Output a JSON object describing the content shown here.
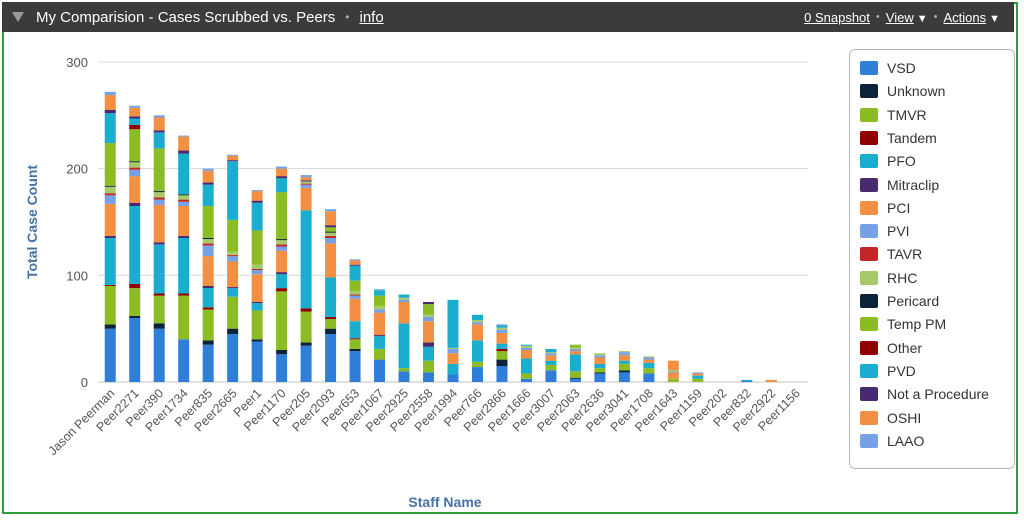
{
  "header": {
    "title": "My Comparision - Cases Scrubbed vs. Peers",
    "info_label": "info",
    "snapshot_label": "0 Snapshot",
    "view_label": "View",
    "actions_label": "Actions",
    "caret": "▼"
  },
  "chart_data": {
    "type": "bar",
    "stacked": true,
    "xlabel": "Staff Name",
    "ylabel": "Total Case Count",
    "ylim": [
      0,
      300
    ],
    "yticks": [
      0,
      100,
      200,
      300
    ],
    "grid": true,
    "legend_position": "right",
    "categories": [
      "Jason Peerman",
      "Peer2271",
      "Peer390",
      "Peer1734",
      "Peer835",
      "Peer2665",
      "Peer1",
      "Peer1170",
      "Peer205",
      "Peer2093",
      "Peer653",
      "Peer1067",
      "Peer2925",
      "Peer2558",
      "Peer1994",
      "Peer766",
      "Peer2866",
      "Peer1666",
      "Peer3007",
      "Peer2063",
      "Peer2636",
      "Peer3041",
      "Peer1708",
      "Peer1643",
      "Peer1159",
      "Peer202",
      "Peer832",
      "Peer2922",
      "Peer1156"
    ],
    "series": [
      {
        "name": "VSD",
        "color": "#2f7ed8",
        "values": [
          50,
          60,
          50,
          40,
          35,
          45,
          38,
          26,
          34,
          45,
          29,
          21,
          10,
          9,
          7,
          14,
          15,
          3,
          11,
          3,
          8,
          9,
          8,
          0,
          0,
          0,
          1,
          0,
          0
        ]
      },
      {
        "name": "Unknown",
        "color": "#0d233a",
        "values": [
          4,
          2,
          5,
          0,
          4,
          5,
          2,
          4,
          3,
          5,
          2,
          0,
          0,
          0,
          0,
          0,
          6,
          0,
          0,
          1,
          1,
          2,
          0,
          0,
          0,
          0,
          0,
          0,
          0
        ]
      },
      {
        "name": "TMVR",
        "color": "#8bbc21",
        "values": [
          36,
          26,
          26,
          41,
          29,
          30,
          27,
          55,
          29,
          9,
          9,
          10,
          3,
          11,
          0,
          5,
          8,
          5,
          5,
          6,
          4,
          6,
          5,
          3,
          3,
          0,
          0,
          0,
          0
        ]
      },
      {
        "name": "Tandem",
        "color": "#910000",
        "values": [
          1,
          4,
          2,
          2,
          2,
          0,
          0,
          3,
          3,
          2,
          1,
          0,
          0,
          0,
          0,
          0,
          2,
          0,
          0,
          0,
          0,
          0,
          0,
          0,
          0,
          0,
          0,
          0,
          0
        ]
      },
      {
        "name": "PFO",
        "color": "#1aadce",
        "values": [
          44,
          73,
          46,
          52,
          18,
          8,
          7,
          13,
          92,
          37,
          16,
          12,
          42,
          13,
          10,
          20,
          5,
          14,
          4,
          16,
          4,
          3,
          5,
          0,
          3,
          0,
          1,
          0,
          0
        ]
      },
      {
        "name": "Mitraclip",
        "color": "#492970",
        "values": [
          2,
          3,
          2,
          2,
          2,
          1,
          1,
          2,
          0,
          0,
          0,
          1,
          0,
          4,
          0,
          0,
          0,
          0,
          0,
          0,
          0,
          0,
          0,
          0,
          0,
          0,
          0,
          0,
          0
        ]
      },
      {
        "name": "PCI",
        "color": "#f28f43",
        "values": [
          30,
          25,
          35,
          28,
          28,
          24,
          26,
          20,
          21,
          32,
          21,
          21,
          20,
          20,
          10,
          15,
          10,
          8,
          5,
          3,
          6,
          5,
          3,
          6,
          2,
          0,
          0,
          2,
          0
        ]
      },
      {
        "name": "PVI",
        "color": "#77a1e5",
        "values": [
          8,
          6,
          5,
          4,
          10,
          5,
          4,
          4,
          3,
          5,
          3,
          3,
          2,
          4,
          4,
          2,
          3,
          2,
          2,
          2,
          2,
          3,
          2,
          1,
          1,
          0,
          0,
          0,
          0
        ]
      },
      {
        "name": "TAVR",
        "color": "#c42525",
        "values": [
          2,
          2,
          2,
          2,
          2,
          1,
          1,
          2,
          1,
          2,
          1,
          0,
          0,
          0,
          0,
          0,
          0,
          0,
          0,
          0,
          0,
          0,
          0,
          0,
          0,
          0,
          0,
          0,
          0
        ]
      },
      {
        "name": "RHC",
        "color": "#a6c96a",
        "values": [
          6,
          5,
          5,
          4,
          4,
          3,
          4,
          4,
          2,
          3,
          3,
          3,
          2,
          2,
          1,
          2,
          2,
          2,
          1,
          1,
          2,
          1,
          1,
          1,
          0,
          0,
          0,
          0,
          0
        ]
      },
      {
        "name": "Pericard",
        "color": "#0d233a",
        "values": [
          1,
          1,
          1,
          1,
          1,
          0,
          0,
          1,
          0,
          1,
          0,
          0,
          0,
          0,
          0,
          0,
          0,
          0,
          0,
          0,
          0,
          0,
          0,
          0,
          0,
          0,
          0,
          0,
          0
        ]
      },
      {
        "name": "Temp PM",
        "color": "#8bbc21",
        "values": [
          40,
          30,
          40,
          0,
          30,
          30,
          32,
          44,
          0,
          4,
          10,
          10,
          0,
          10,
          0,
          0,
          0,
          0,
          0,
          3,
          0,
          0,
          0,
          0,
          0,
          0,
          0,
          0,
          0
        ]
      },
      {
        "name": "Other",
        "color": "#910000",
        "values": [
          0,
          4,
          0,
          0,
          0,
          0,
          0,
          0,
          0,
          0,
          0,
          0,
          0,
          0,
          0,
          0,
          0,
          0,
          0,
          0,
          0,
          0,
          0,
          0,
          0,
          0,
          0,
          0,
          0
        ]
      },
      {
        "name": "PVD",
        "color": "#1aadce",
        "values": [
          28,
          6,
          15,
          38,
          20,
          55,
          26,
          13,
          0,
          0,
          14,
          5,
          3,
          0,
          45,
          5,
          2,
          1,
          3,
          0,
          0,
          0,
          0,
          0,
          0,
          0,
          0,
          0,
          0
        ]
      },
      {
        "name": "Not a Procedure",
        "color": "#492970",
        "values": [
          3,
          2,
          2,
          3,
          2,
          1,
          2,
          2,
          1,
          2,
          1,
          0,
          0,
          2,
          0,
          0,
          0,
          0,
          0,
          0,
          0,
          0,
          0,
          0,
          0,
          0,
          0,
          0,
          0
        ]
      },
      {
        "name": "OSHI",
        "color": "#f28f43",
        "values": [
          14,
          8,
          12,
          13,
          11,
          4,
          9,
          7,
          3,
          13,
          4,
          0,
          0,
          0,
          0,
          0,
          0,
          0,
          0,
          0,
          0,
          0,
          0,
          9,
          0,
          0,
          0,
          0,
          0
        ]
      },
      {
        "name": "LAAO",
        "color": "#77a1e5",
        "values": [
          3,
          2,
          2,
          1,
          2,
          1,
          1,
          2,
          2,
          2,
          1,
          1,
          0,
          0,
          0,
          0,
          1,
          0,
          0,
          0,
          0,
          0,
          0,
          0,
          0,
          0,
          0,
          0,
          0
        ]
      }
    ]
  }
}
